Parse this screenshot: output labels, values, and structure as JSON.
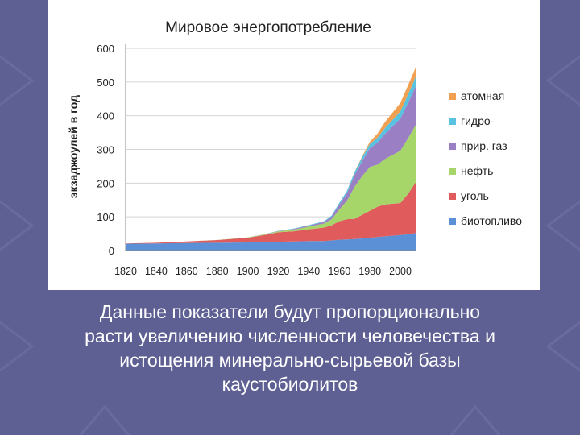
{
  "slide": {
    "caption_lines": [
      "Данные показатели будут пропорционально",
      "расти  увеличению численности человечества и",
      "истощения минерально-сырьевой базы",
      "каустобиолитов"
    ]
  },
  "chart_data": {
    "type": "area",
    "stacked": true,
    "title": "Мировое энергопотребление",
    "ylabel": "экзаджоулей в год",
    "xlabel": "",
    "xlim": [
      1820,
      2010
    ],
    "ylim": [
      0,
      600
    ],
    "yticks": [
      0,
      100,
      200,
      300,
      400,
      500,
      600
    ],
    "xticks": [
      1820,
      1840,
      1860,
      1880,
      1900,
      1920,
      1940,
      1960,
      1980,
      2000
    ],
    "grid": true,
    "legend_position": "right",
    "x": [
      1820,
      1840,
      1860,
      1880,
      1900,
      1910,
      1920,
      1930,
      1940,
      1950,
      1955,
      1960,
      1965,
      1970,
      1975,
      1980,
      1985,
      1990,
      1995,
      2000,
      2005,
      2010
    ],
    "series": [
      {
        "name": "биотопливо",
        "color": "#5b8fd6",
        "values": [
          20,
          21,
          22,
          23,
          24,
          25,
          26,
          27,
          28,
          28,
          30,
          32,
          33,
          34,
          36,
          38,
          40,
          42,
          44,
          46,
          48,
          52
        ]
      },
      {
        "name": "уголь",
        "color": "#e05c5c",
        "values": [
          1,
          2,
          5,
          8,
          14,
          20,
          28,
          30,
          35,
          40,
          45,
          55,
          60,
          60,
          70,
          80,
          90,
          95,
          95,
          95,
          120,
          150
        ]
      },
      {
        "name": "нефть",
        "color": "#a6d66a",
        "values": [
          0,
          0,
          0,
          0.5,
          1,
          2,
          3,
          5,
          8,
          12,
          18,
          35,
          55,
          95,
          115,
          130,
          125,
          135,
          145,
          155,
          165,
          170
        ]
      },
      {
        "name": "прир. газ",
        "color": "#9a7fc4",
        "values": [
          0,
          0,
          0,
          0,
          0,
          0.5,
          1,
          2,
          3,
          5,
          8,
          15,
          22,
          35,
          45,
          55,
          65,
          75,
          85,
          95,
          105,
          115
        ]
      },
      {
        "name": "гидро-",
        "color": "#59c2e0",
        "values": [
          0,
          0,
          0,
          0,
          0,
          0,
          0.5,
          1,
          1.5,
          2,
          3,
          5,
          7,
          9,
          11,
          13,
          15,
          17,
          19,
          22,
          25,
          28
        ]
      },
      {
        "name": "атомная",
        "color": "#f0a050",
        "values": [
          0,
          0,
          0,
          0,
          0,
          0,
          0,
          0,
          0,
          0,
          0,
          0,
          0,
          1,
          3,
          7,
          12,
          18,
          22,
          25,
          27,
          28
        ]
      }
    ]
  }
}
